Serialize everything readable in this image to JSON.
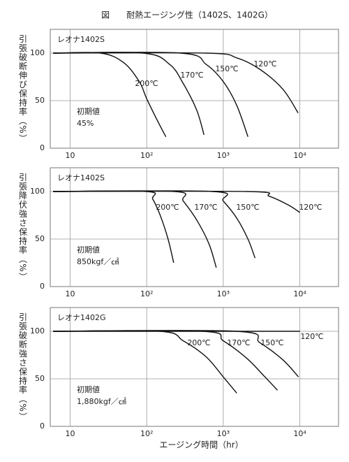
{
  "title": "図　　耐熱エージング性（1402S、1402G）",
  "chart_data": [
    {
      "type": "line",
      "panel_title": "レオナ1402S",
      "ylabel": "引張破断伸び保持率（%）",
      "initial_label": "初期値",
      "initial_value": "45%",
      "xlim": [
        5.5,
        32000
      ],
      "ylim": [
        0,
        125
      ],
      "log_x": true,
      "grid": true,
      "xticks": [
        10,
        {
          "value": 100,
          "label": "10²"
        },
        {
          "value": 1000,
          "label": "10³"
        },
        {
          "value": 10000,
          "label": "10⁴"
        }
      ],
      "yticks": [
        0,
        50,
        100
      ],
      "series": [
        {
          "name": "200℃",
          "color": "#111111",
          "x": [
            6,
            25,
            50,
            80,
            100,
            140,
            178
          ],
          "values": [
            100,
            100,
            90,
            70,
            52,
            28,
            12
          ]
        },
        {
          "name": "170℃",
          "color": "#111111",
          "x": [
            6,
            90,
            200,
            300,
            450,
            560
          ],
          "values": [
            100,
            100,
            88,
            68,
            40,
            14
          ]
        },
        {
          "name": "150℃",
          "color": "#111111",
          "x": [
            6,
            280,
            600,
            1000,
            1500,
            2100
          ],
          "values": [
            100,
            100,
            88,
            70,
            45,
            12
          ]
        },
        {
          "name": "120℃",
          "color": "#111111",
          "x": [
            6,
            600,
            1500,
            3000,
            6000,
            9500
          ],
          "values": [
            100,
            100,
            95,
            83,
            62,
            37
          ]
        }
      ]
    },
    {
      "type": "line",
      "panel_title": "レオナ1402S",
      "ylabel": "引張降伏強さ保持率（%）",
      "initial_label": "初期値",
      "initial_value": "850kgf／㎠",
      "xlim": [
        5.5,
        32000
      ],
      "ylim": [
        0,
        125
      ],
      "log_x": true,
      "grid": true,
      "xticks": [
        10,
        {
          "value": 100,
          "label": "10²"
        },
        {
          "value": 1000,
          "label": "10³"
        },
        {
          "value": 10000,
          "label": "10⁴"
        }
      ],
      "yticks": [
        0,
        50,
        100
      ],
      "series": [
        {
          "name": "200℃",
          "color": "#111111",
          "x": [
            6,
            100,
            120,
            150,
            190,
            225
          ],
          "values": [
            100,
            100,
            92,
            75,
            50,
            25
          ]
        },
        {
          "name": "170℃",
          "color": "#111111",
          "x": [
            6,
            230,
            300,
            450,
            650,
            810
          ],
          "values": [
            100,
            100,
            90,
            70,
            45,
            20
          ]
        },
        {
          "name": "150℃",
          "color": "#111111",
          "x": [
            6,
            730,
            1000,
            1500,
            2100,
            2600
          ],
          "values": [
            100,
            100,
            90,
            72,
            50,
            30
          ]
        },
        {
          "name": "120℃",
          "color": "#111111",
          "x": [
            6,
            2100,
            4000,
            7000,
            10000
          ],
          "values": [
            100,
            100,
            95,
            86,
            78
          ]
        }
      ]
    },
    {
      "type": "line",
      "panel_title": "レオナ1402G",
      "ylabel": "引張破断強さ保持率（%）",
      "initial_label": "初期値",
      "initial_value": "1,880kgf／㎠",
      "xlabel": "エージング時間（hr）",
      "xlim": [
        5.5,
        32000
      ],
      "ylim": [
        0,
        125
      ],
      "log_x": true,
      "grid": true,
      "xticks": [
        10,
        {
          "value": 100,
          "label": "10²"
        },
        {
          "value": 1000,
          "label": "10³"
        },
        {
          "value": 10000,
          "label": "10⁴"
        }
      ],
      "yticks": [
        0,
        50,
        100
      ],
      "series": [
        {
          "name": "200℃",
          "color": "#111111",
          "x": [
            6,
            150,
            300,
            600,
            1000,
            1500
          ],
          "values": [
            100,
            100,
            90,
            73,
            52,
            35
          ]
        },
        {
          "name": "170℃",
          "color": "#111111",
          "x": [
            6,
            540,
            1000,
            2000,
            3500,
            5100
          ],
          "values": [
            100,
            100,
            90,
            72,
            52,
            38
          ]
        },
        {
          "name": "150℃",
          "color": "#111111",
          "x": [
            6,
            1500,
            3000,
            6000,
            9600
          ],
          "values": [
            100,
            100,
            88,
            70,
            52
          ]
        },
        {
          "name": "120℃",
          "color": "#111111",
          "x": [
            6,
            10000
          ],
          "values": [
            100,
            100
          ]
        }
      ]
    }
  ]
}
